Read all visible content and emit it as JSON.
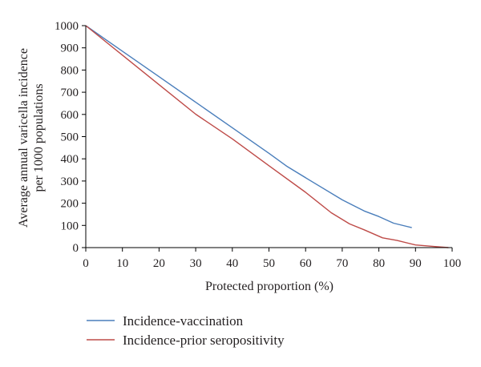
{
  "chart_data": {
    "type": "line",
    "title": "",
    "xlabel": "Protected proportion (%)",
    "ylabel_lines": [
      "Average annual varicella incidence",
      "per 1000 populations"
    ],
    "xlim": [
      0,
      100
    ],
    "ylim": [
      0,
      1000
    ],
    "xticks": [
      0,
      10,
      20,
      30,
      40,
      50,
      60,
      70,
      80,
      90,
      100
    ],
    "yticks": [
      0,
      100,
      200,
      300,
      400,
      500,
      600,
      700,
      800,
      900,
      1000
    ],
    "grid": false,
    "legend_position": "bottom-left, below the plot",
    "series": [
      {
        "name": "Incidence-vaccination",
        "color": "#4a7ebb",
        "x": [
          0,
          10,
          20,
          30,
          40,
          50,
          55,
          62,
          70,
          76,
          80,
          84,
          89
        ],
        "y": [
          1000,
          885,
          770,
          655,
          540,
          425,
          365,
          295,
          215,
          165,
          140,
          110,
          90
        ]
      },
      {
        "name": "Incidence-prior seropositivity",
        "color": "#be4b48",
        "x": [
          0,
          10,
          20,
          30,
          40,
          50,
          60,
          67,
          72,
          76,
          81,
          85,
          90,
          95,
          99
        ],
        "y": [
          1000,
          867,
          734,
          601,
          490,
          369,
          249,
          157,
          107,
          80,
          44,
          32,
          12,
          5,
          0
        ]
      }
    ]
  }
}
